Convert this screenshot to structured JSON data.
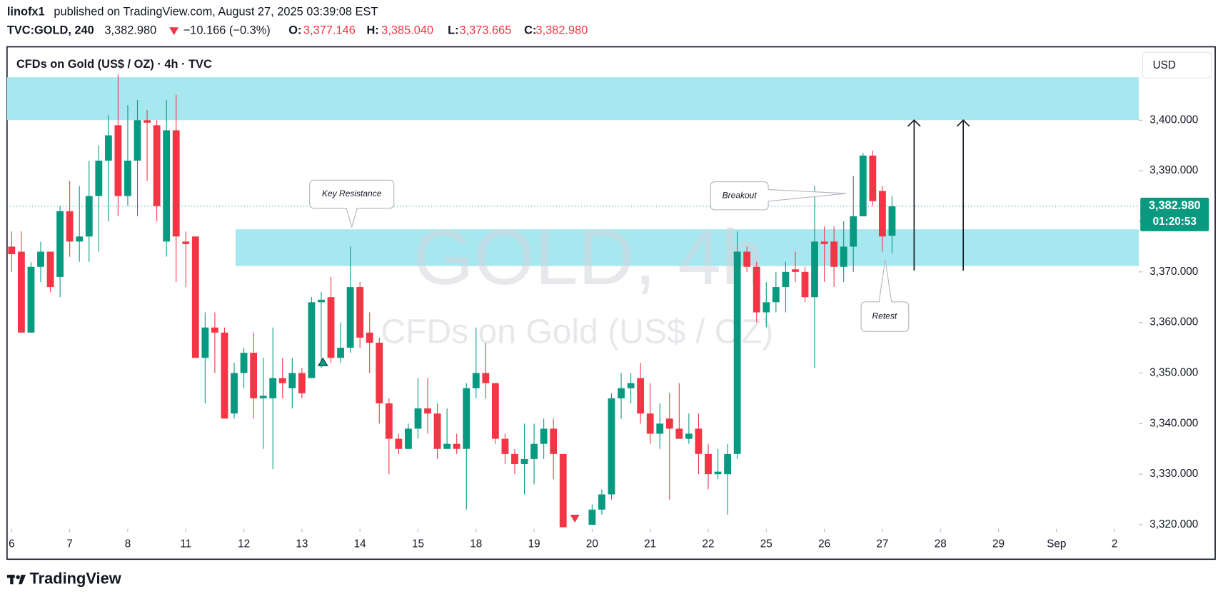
{
  "header": {
    "author": "linofx1",
    "published": "published on TradingView.com, August 27, 2025 03:39:08 EST",
    "symbol": "TVC:GOLD, 240",
    "price": "3,382.980",
    "change": "−10.166 (−0.3%)",
    "ohlc": [
      {
        "label": "O:",
        "value": "3,377.146"
      },
      {
        "label": "H:",
        "value": "3,385.040"
      },
      {
        "label": "L:",
        "value": "3,373.665"
      },
      {
        "label": "C:",
        "value": "3,382.980"
      }
    ],
    "brand": "TradingView"
  },
  "chart_data": {
    "type": "candlestick",
    "title": "CFDs on Gold (US$ / OZ) · 4h · TVC",
    "currency": "USD",
    "watermark": [
      "GOLD, 4h",
      "CFDs on Gold (US$ / OZ)"
    ],
    "annotations": [
      "Key Resistance",
      "Breakout",
      "Retest"
    ],
    "up_color": "#089981",
    "down_color": "#f23645",
    "last_price": {
      "value": 3382.98,
      "label": "3,382.980"
    },
    "countdown": "01:20:53",
    "categories": [
      null,
      null,
      null,
      null,
      null,
      null,
      null,
      null,
      null,
      null,
      null,
      null,
      null,
      null,
      null,
      null,
      null,
      null,
      null,
      null,
      null,
      null,
      null,
      null,
      null,
      null,
      null,
      null,
      null,
      null,
      null,
      null,
      null,
      null,
      null,
      null,
      null,
      null,
      null,
      null,
      null,
      null,
      null,
      null,
      null,
      null,
      null,
      null,
      null,
      null,
      null,
      null,
      null,
      null,
      null,
      null,
      null,
      null,
      null,
      null,
      null,
      null,
      null,
      null,
      null,
      null,
      null,
      null,
      null,
      null,
      null,
      null,
      null,
      null,
      null,
      null,
      null,
      null,
      null,
      null,
      null,
      null,
      null,
      null,
      null,
      null,
      null,
      null,
      null,
      null,
      null,
      null
    ],
    "open": [
      3375,
      3374,
      3358,
      3371,
      3374,
      3369,
      3382,
      3376,
      3377,
      3385,
      3392,
      3399,
      3385,
      3392,
      3400,
      3399,
      3376,
      3398,
      3376,
      3377,
      3353,
      3359,
      3358,
      3342,
      3350,
      3354,
      3345,
      3345,
      3349,
      3347,
      3350,
      3349,
      3364,
      3365,
      3353,
      3355,
      3367,
      3358,
      3356,
      3344,
      3337,
      3335,
      3339,
      3343,
      3342,
      3335,
      3336,
      3335,
      3347,
      3350,
      3348,
      3337,
      3334,
      3332,
      3333,
      3336,
      3339,
      3334,
      null,
      null,
      3320,
      3323,
      3326,
      3345,
      3347,
      3349,
      3342,
      3338,
      3341,
      3339,
      3337,
      3339,
      3334,
      3330,
      3330,
      3334,
      3374,
      3371,
      3362,
      3364,
      3367,
      3370.5,
      3370,
      3365,
      3376,
      3376,
      3371,
      3375,
      3381,
      3393,
      3386,
      3377.146
    ],
    "high": [
      3378,
      3378,
      3372,
      3376,
      3374,
      3383,
      3388,
      3387,
      3392,
      3395,
      3401,
      3409,
      3403,
      3404,
      3402,
      3400,
      3404,
      3405,
      3378,
      3377,
      3362,
      3362,
      3359,
      3352,
      3355,
      3358,
      3353,
      3359,
      3353,
      3353,
      3351,
      3365,
      3366,
      3369,
      3360,
      3375,
      3368,
      3362,
      3357,
      3345,
      3338,
      3340,
      3349,
      3349,
      3344,
      3343,
      3338,
      3348,
      3359,
      3356,
      3348,
      3338,
      3335,
      3340,
      3340,
      3341,
      3341,
      3334,
      null,
      null,
      3324,
      3327,
      3346,
      3350,
      3350,
      3352,
      3348,
      3344,
      3346,
      3348,
      3342,
      3342,
      3336,
      3335,
      3336,
      3378,
      3375,
      3372,
      3368,
      3370,
      3372,
      3374,
      3371,
      3387,
      3379,
      3379,
      3380,
      3389,
      3393.5,
      3394,
      3387,
      3385.04
    ],
    "low": [
      3370,
      3358,
      3358,
      3368,
      3366,
      3365,
      3373,
      3372,
      3372,
      3374,
      3380,
      3381,
      3383,
      3381,
      3388,
      3380,
      3373,
      3368,
      3367,
      3353,
      3344,
      3350,
      3341,
      3341,
      3347,
      3341,
      3335,
      3331,
      3345,
      3343,
      3345,
      3349,
      3351,
      3352,
      3352,
      3354,
      3355,
      3350,
      3340,
      3330,
      3334,
      3335,
      3337,
      3338,
      3333,
      3335,
      3334,
      3323,
      3345,
      3345,
      3336,
      3332,
      3330,
      3326,
      3328,
      3333,
      3329,
      3319.5,
      null,
      null,
      3320,
      3322,
      3325,
      3341,
      3344,
      3340,
      3336,
      3335,
      3325,
      3337,
      3336,
      3330,
      3327,
      3329,
      3322,
      3333,
      3370,
      3360,
      3359,
      3362,
      3362,
      3368,
      3364,
      3351,
      3368,
      3367,
      3368,
      3370,
      3381,
      3383,
      3374,
      3373.665
    ],
    "close": [
      3373.5,
      3358,
      3371,
      3374,
      3367,
      3382,
      3376,
      3377,
      3385,
      3392,
      3397,
      3385,
      3392,
      3400,
      3399.5,
      3383,
      3398,
      3377,
      3375.5,
      3353,
      3359,
      3358,
      3341,
      3350,
      3354,
      3345,
      3345.5,
      3349,
      3348,
      3350,
      3346,
      3364,
      3364.5,
      3353,
      3355,
      3367,
      3357,
      3356,
      3344,
      3337,
      3335,
      3339,
      3343,
      3342,
      3335,
      3336,
      3335,
      3347,
      3350,
      3348,
      3337,
      3334,
      3332,
      3333,
      3336,
      3339,
      3334,
      3319.5,
      null,
      null,
      3323,
      3326,
      3345,
      3347,
      3348,
      3342,
      3338,
      3340,
      3339,
      3337,
      3338,
      3334,
      3330,
      3330.5,
      3334,
      3374,
      3371,
      3362,
      3364,
      3367,
      3370,
      3370,
      3365,
      3376,
      3375.5,
      3371,
      3375,
      3381,
      3393,
      3384,
      3377,
      3382.98
    ],
    "xlim": [
      -0.48,
      116.5
    ],
    "xticks": [
      {
        "value": 0,
        "label": "6"
      },
      {
        "value": 6,
        "label": "7"
      },
      {
        "value": 12,
        "label": "8"
      },
      {
        "value": 18,
        "label": "11"
      },
      {
        "value": 24,
        "label": "12"
      },
      {
        "value": 30,
        "label": "13"
      },
      {
        "value": 36,
        "label": "14"
      },
      {
        "value": 42,
        "label": "15"
      },
      {
        "value": 48,
        "label": "18"
      },
      {
        "value": 54,
        "label": "19"
      },
      {
        "value": 60,
        "label": "20"
      },
      {
        "value": 66,
        "label": "21"
      },
      {
        "value": 72,
        "label": "22"
      },
      {
        "value": 78,
        "label": "25"
      },
      {
        "value": 84,
        "label": "26"
      },
      {
        "value": 90,
        "label": "27"
      },
      {
        "value": 96,
        "label": "28"
      },
      {
        "value": 102,
        "label": "29"
      },
      {
        "value": 108,
        "label": "Sep"
      },
      {
        "value": 114,
        "label": "2"
      }
    ],
    "ylim": [
      3319.2,
      3414.2
    ],
    "yticks": [
      {
        "value": 3320,
        "label": "3,320.000"
      },
      {
        "value": 3330,
        "label": "3,330.000"
      },
      {
        "value": 3340,
        "label": "3,340.000"
      },
      {
        "value": 3350,
        "label": "3,350.000"
      },
      {
        "value": 3360,
        "label": "3,360.000"
      },
      {
        "value": 3370,
        "label": "3,370.000"
      },
      {
        "value": 3380,
        "label": "3,380.000"
      },
      {
        "value": 3390,
        "label": "3,390.000"
      },
      {
        "value": 3400,
        "label": "3,400.000"
      }
    ],
    "grid": false
  }
}
